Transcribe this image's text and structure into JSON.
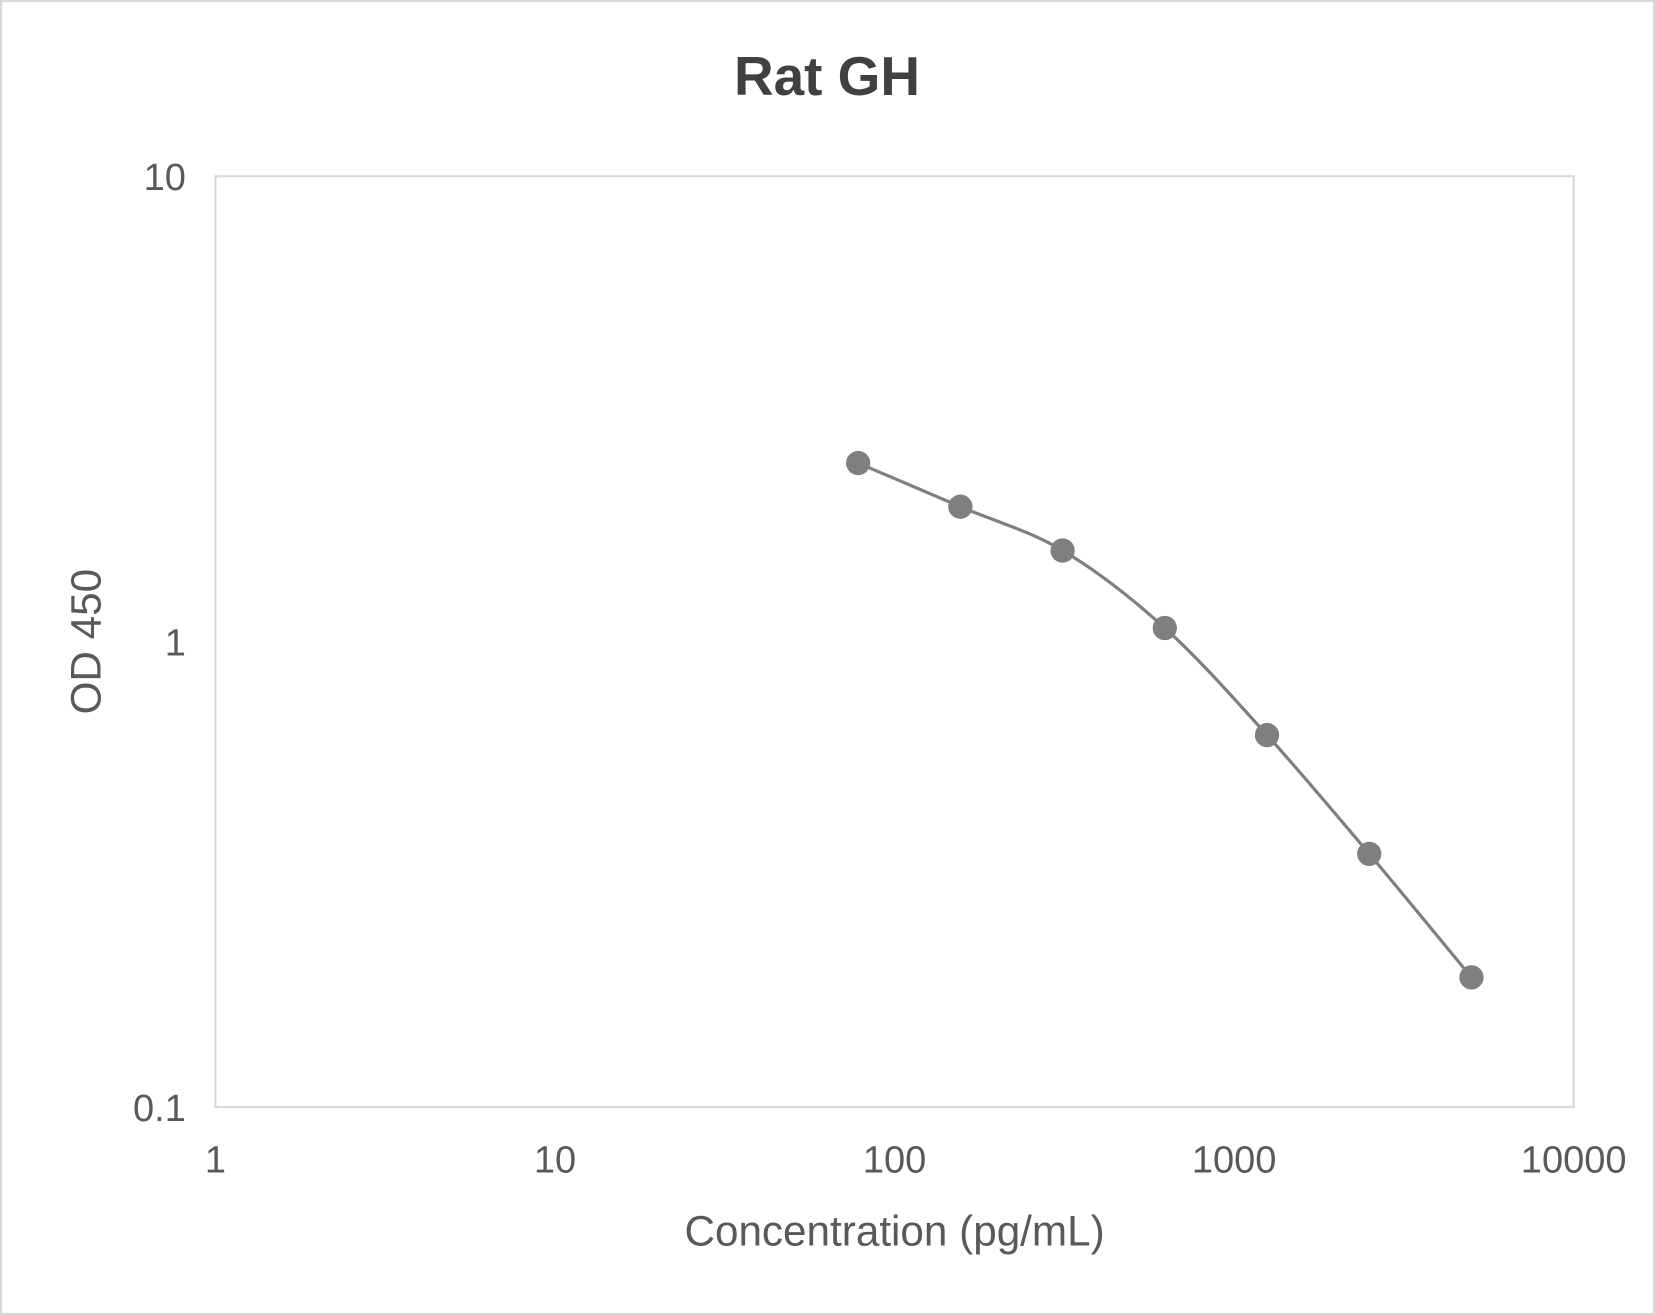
{
  "chart_data": {
    "type": "line",
    "title": "Rat GH",
    "xlabel": "Concentration (pg/mL)",
    "ylabel": "OD 450",
    "xscale": "log",
    "yscale": "log",
    "xlim": [
      1,
      10000
    ],
    "ylim": [
      0.1,
      10
    ],
    "xticks": [
      "1",
      "10",
      "100",
      "1000",
      "10000"
    ],
    "yticks": [
      "0.1",
      "1",
      "10"
    ],
    "grid": false,
    "legend": "none",
    "smoothed": true,
    "series": [
      {
        "color": "#7f7f7f",
        "x": [
          78.125,
          156.25,
          312.5,
          625,
          1250,
          2500,
          5000
        ],
        "y": [
          2.42,
          1.95,
          1.57,
          1.07,
          0.63,
          0.35,
          0.19
        ]
      }
    ]
  }
}
